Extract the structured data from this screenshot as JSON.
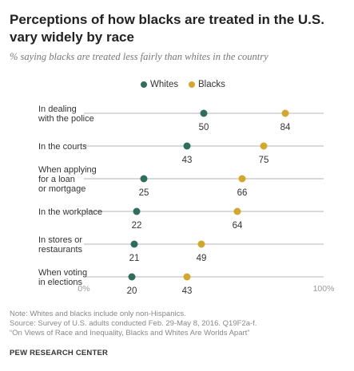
{
  "title": "Perceptions of how blacks are treated in the U.S. vary widely by race",
  "subtitle": "% saying blacks are treated less fairly than whites in the country",
  "colors": {
    "whites": "#2e6e5c",
    "blacks": "#d4a72c",
    "line": "#b5b5b5",
    "axis_text": "#9a9a9a"
  },
  "chart_data": {
    "type": "scatter",
    "xlim": [
      0,
      100
    ],
    "tick_labels": [
      "0%",
      "100%"
    ],
    "legend_position": "top-center",
    "series": [
      {
        "name": "Whites",
        "values": [
          50,
          43,
          25,
          22,
          21,
          20
        ]
      },
      {
        "name": "Blacks",
        "values": [
          84,
          75,
          66,
          64,
          49,
          43
        ]
      }
    ],
    "categories": [
      [
        "In dealing",
        "with the police"
      ],
      [
        "In the courts"
      ],
      [
        "When applying",
        "for a loan",
        "or mortgage"
      ],
      [
        "In the workplace"
      ],
      [
        "In stores or",
        "restaurants"
      ],
      [
        "When voting",
        "in elections"
      ]
    ]
  },
  "notes": [
    "Note: Whites and blacks include only non-Hispanics.",
    "Source: Survey of U.S. adults conducted Feb. 29-May 8, 2016. Q19F2a-f.",
    "“On Views of Race and Inequality, Blacks and Whites Are Worlds Apart”"
  ],
  "source_org": "PEW RESEARCH CENTER"
}
